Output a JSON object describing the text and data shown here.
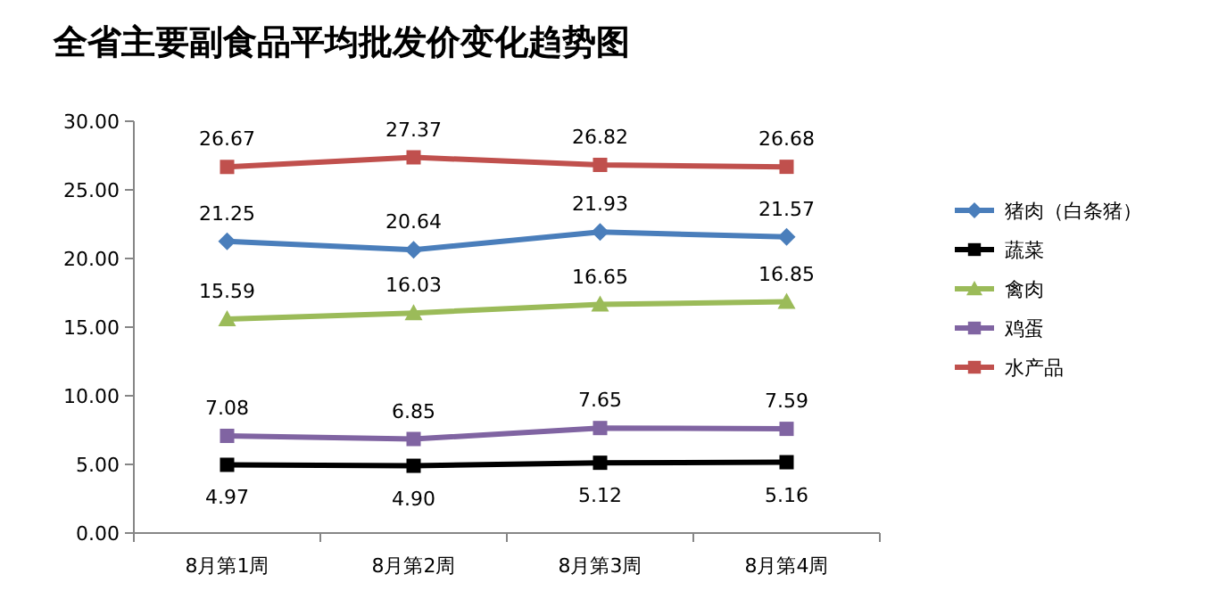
{
  "chart_data": {
    "type": "line",
    "title": "全省主要副食品平均批发价变化趋势图",
    "categories": [
      "8月第1周",
      "8月第2周",
      "8月第3周",
      "8月第4周"
    ],
    "ylim": [
      0,
      30
    ],
    "yticks": [
      {
        "value": 0,
        "label": "0.00"
      },
      {
        "value": 5,
        "label": "5.00"
      },
      {
        "value": 10,
        "label": "10.00"
      },
      {
        "value": 15,
        "label": "15.00"
      },
      {
        "value": 20,
        "label": "20.00"
      },
      {
        "value": 25,
        "label": "25.00"
      },
      {
        "value": 30,
        "label": "30.00"
      }
    ],
    "legend": "right",
    "line_style": "solid",
    "series": [
      {
        "name": "猪肉（白条猪）",
        "color": "#4a7ebb",
        "marker": "diamond",
        "values": [
          21.25,
          20.64,
          21.93,
          21.57
        ],
        "value_labels": [
          "21.25",
          "20.64",
          "21.93",
          "21.57"
        ]
      },
      {
        "name": "蔬菜",
        "color": "#000000",
        "marker": "square",
        "values": [
          4.97,
          4.9,
          5.12,
          5.16
        ],
        "value_labels": [
          "4.97",
          "4.90",
          "5.12",
          "5.16"
        ]
      },
      {
        "name": "禽肉",
        "color": "#9bbb59",
        "marker": "triangle",
        "values": [
          15.59,
          16.03,
          16.65,
          16.85
        ],
        "value_labels": [
          "15.59",
          "16.03",
          "16.65",
          "16.85"
        ]
      },
      {
        "name": "鸡蛋",
        "color": "#8064a2",
        "marker": "square",
        "values": [
          7.08,
          6.85,
          7.65,
          7.59
        ],
        "value_labels": [
          "7.08",
          "6.85",
          "7.65",
          "7.59"
        ]
      },
      {
        "name": "水产品",
        "color": "#c0504d",
        "marker": "square",
        "values": [
          26.67,
          27.37,
          26.82,
          26.68
        ],
        "value_labels": [
          "26.67",
          "27.37",
          "26.82",
          "26.68"
        ]
      }
    ]
  }
}
